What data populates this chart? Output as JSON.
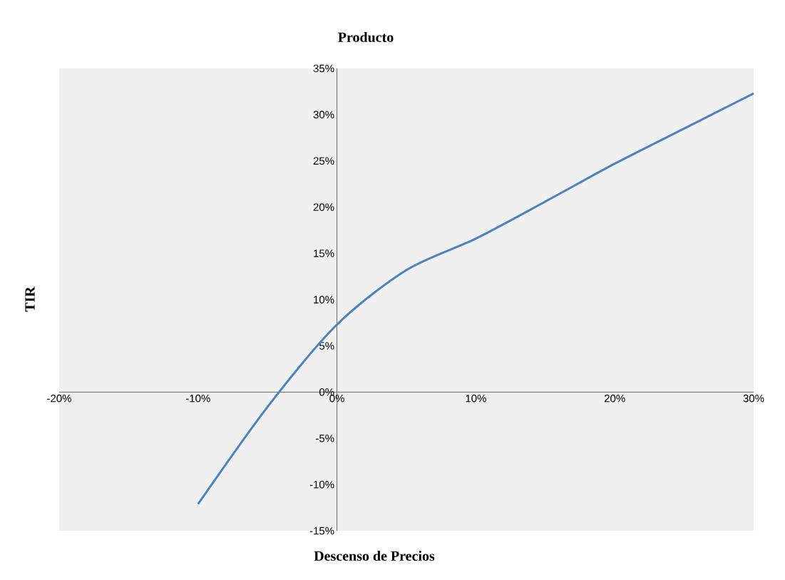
{
  "chart_data": {
    "type": "line",
    "title": "Producto",
    "xlabel": "Descenso de Precios",
    "ylabel": "TIR",
    "x": [
      -10,
      -5,
      0,
      5,
      10,
      15,
      20,
      25,
      30
    ],
    "series": [
      {
        "color": "#4f81bd",
        "values": [
          -12.1,
          -1.6,
          7.3,
          13.2,
          16.6,
          20.6,
          24.7,
          28.5,
          32.3
        ]
      }
    ],
    "xlim": [
      -20,
      30
    ],
    "ylim": [
      -15,
      35
    ],
    "xticks": [
      {
        "value": -20,
        "label": "-20%"
      },
      {
        "value": -10,
        "label": "-10%"
      },
      {
        "value": 0,
        "label": "0%"
      },
      {
        "value": 10,
        "label": "10%"
      },
      {
        "value": 20,
        "label": "20%"
      },
      {
        "value": 30,
        "label": "30%"
      }
    ],
    "yticks": [
      {
        "value": -15,
        "label": "-15%"
      },
      {
        "value": -10,
        "label": "-10%"
      },
      {
        "value": -5,
        "label": "-5%"
      },
      {
        "value": 0,
        "label": "0%"
      },
      {
        "value": 5,
        "label": "5%"
      },
      {
        "value": 10,
        "label": "10%"
      },
      {
        "value": 15,
        "label": "15%"
      },
      {
        "value": 20,
        "label": "20%"
      },
      {
        "value": 25,
        "label": "25%"
      },
      {
        "value": 30,
        "label": "30%"
      },
      {
        "value": 35,
        "label": "35%"
      }
    ]
  }
}
